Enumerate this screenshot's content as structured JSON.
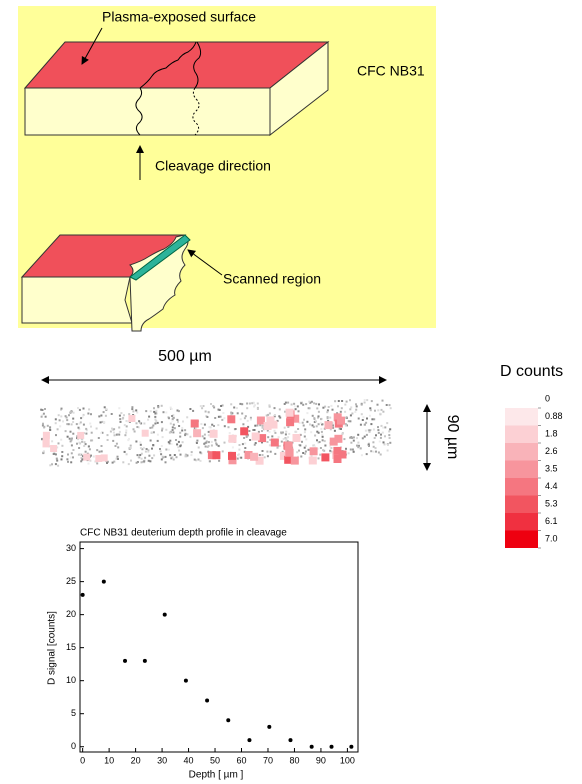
{
  "diagram": {
    "surface_label": "Plasma-exposed surface",
    "material_label": "CFC NB31",
    "cleavage_label": "Cleavage direction",
    "scanned_label": "Scanned region"
  },
  "map": {
    "width_label": "500 µm",
    "height_label": "90 µm"
  },
  "colorbar": {
    "title": "D counts",
    "ticks": [
      0,
      0.88,
      1.8,
      2.6,
      3.5,
      4.4,
      5.3,
      6.1,
      {
        "value": 7,
        "label": "7.0"
      }
    ],
    "colors": [
      "#fde8ea",
      "#fcd0d4",
      "#f9b3b9",
      "#f7959d",
      "#f57680",
      "#f25560",
      "#f03040",
      "#ee0010"
    ]
  },
  "chart_data": {
    "type": "scatter",
    "title": "CFC NB31 deuterium depth profile in cleavage",
    "x_label": "Depth  [ µm ]",
    "y_label": "D signal [counts]",
    "x": [
      0,
      8,
      16,
      23.5,
      31,
      39,
      47,
      55,
      63,
      70.5,
      78.5,
      86.5,
      94,
      101.5
    ],
    "values": [
      23,
      25,
      13,
      13,
      20,
      10,
      7,
      4,
      1,
      3,
      1,
      0,
      0,
      0
    ],
    "color": "#000000",
    "xlim": [
      -1,
      104
    ],
    "ylim": [
      -0.8,
      31
    ],
    "xticks": [
      0,
      10,
      20,
      30,
      40,
      50,
      60,
      70,
      80,
      90,
      100
    ],
    "yticks": [
      0,
      5,
      10,
      15,
      20,
      25,
      30
    ]
  }
}
